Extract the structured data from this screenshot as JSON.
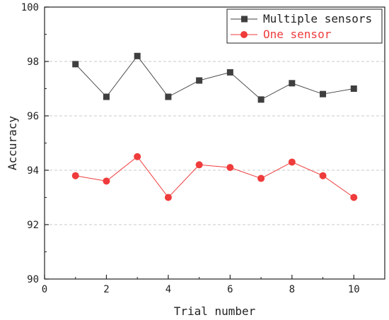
{
  "chart_data": {
    "type": "line",
    "title": "",
    "xlabel": "Trial number",
    "ylabel": "Accuracy",
    "xlim": [
      0,
      11
    ],
    "ylim": [
      90,
      100
    ],
    "x_ticks": [
      0,
      2,
      4,
      6,
      8,
      10
    ],
    "y_ticks": [
      90,
      92,
      94,
      96,
      98,
      100
    ],
    "x_tick_labels": [
      "0",
      "2",
      "4",
      "6",
      "8",
      "10"
    ],
    "y_tick_labels": [
      "90",
      "92",
      "94",
      "96",
      "98",
      "100"
    ],
    "grid": "horizontal dashed",
    "legend_position": "top-right",
    "x": [
      1,
      2,
      3,
      4,
      5,
      6,
      7,
      8,
      9,
      10
    ],
    "series": [
      {
        "name": "Multiple sensors",
        "color": "#3f3f3f",
        "marker": "square",
        "values": [
          97.9,
          96.7,
          98.2,
          96.7,
          97.3,
          97.6,
          96.6,
          97.2,
          96.8,
          97.0
        ]
      },
      {
        "name": "One sensor",
        "color": "#ef3b3b",
        "marker": "circle",
        "values": [
          93.8,
          93.6,
          94.5,
          93.0,
          94.2,
          94.1,
          93.7,
          94.3,
          93.8,
          93.0
        ]
      }
    ]
  }
}
